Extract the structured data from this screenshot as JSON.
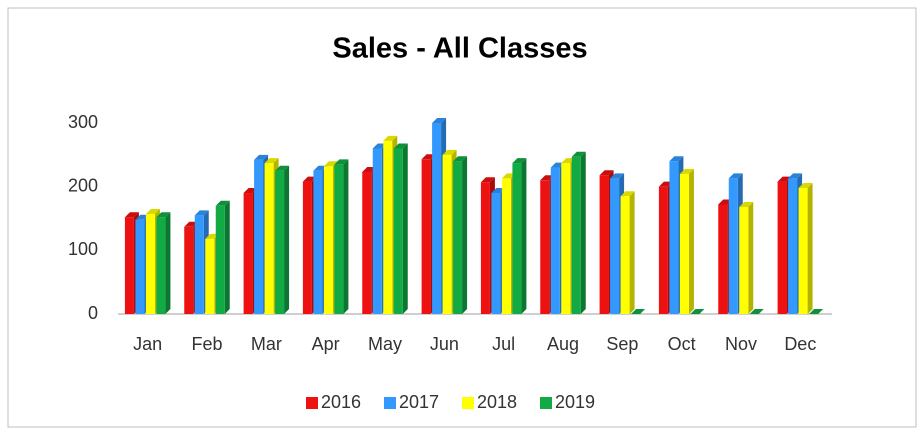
{
  "chart_data": {
    "type": "bar",
    "title": "Sales - All Classes",
    "categories": [
      "Jan",
      "Feb",
      "Mar",
      "Apr",
      "May",
      "Jun",
      "Jul",
      "Aug",
      "Sep",
      "Oct",
      "Nov",
      "Dec"
    ],
    "series": [
      {
        "name": "2016",
        "color": "#ee1111",
        "values": [
          152,
          137,
          190,
          208,
          223,
          243,
          207,
          210,
          218,
          200,
          172,
          208
        ]
      },
      {
        "name": "2017",
        "color": "#3399ff",
        "values": [
          148,
          155,
          242,
          225,
          260,
          300,
          190,
          230,
          213,
          240,
          213,
          213
        ]
      },
      {
        "name": "2018",
        "color": "#ffff00",
        "values": [
          157,
          118,
          237,
          232,
          272,
          250,
          213,
          237,
          185,
          220,
          168,
          198
        ]
      },
      {
        "name": "2019",
        "color": "#11aa44",
        "values": [
          152,
          170,
          225,
          235,
          260,
          240,
          237,
          247,
          0,
          0,
          0,
          0
        ]
      }
    ],
    "ylim": [
      0,
      300
    ],
    "yticks": [
      0,
      100,
      200,
      300
    ],
    "grid": false,
    "legend": "bottom"
  }
}
